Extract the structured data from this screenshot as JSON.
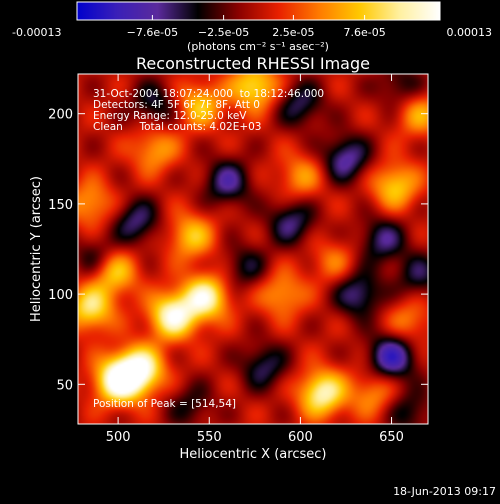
{
  "chart_data": {
    "type": "heatmap",
    "title": "Reconstructed RHESSI Image",
    "xlabel": "Heliocentric X (arcsec)",
    "ylabel": "Heliocentric Y (arcsec)",
    "xlim": [
      478,
      670
    ],
    "ylim": [
      28,
      222
    ],
    "x_ticks": [
      500,
      550,
      600,
      650
    ],
    "y_ticks": [
      50,
      100,
      150,
      200
    ],
    "colorbar": {
      "min": -0.00013,
      "max": 0.00013,
      "tick_values": [
        -0.00013,
        -7.6e-05,
        -2.5e-05,
        2.5e-05,
        7.6e-05,
        0.00013
      ],
      "tick_labels": [
        "-0.00013",
        "−7.6e-05",
        "−2.5e-05",
        "2.5e-05",
        "7.6e-05",
        "0.00013"
      ],
      "unit_label": "(photons cm⁻² s⁻¹ asec⁻²)",
      "colors": [
        "#0000cc",
        "#3a1fb8",
        "#5a2a9c",
        "#000000",
        "#8a0000",
        "#e82000",
        "#ff7a00",
        "#ffc800",
        "#fff0a0",
        "#ffffff"
      ]
    },
    "annotations": [
      "31-Oct-2004 18:07:24.000  to 18:12:46.000",
      "Detectors: 4F 5F 6F 7F 8F, Att 0",
      "Energy Range: 12.0-25.0 keV",
      "Clean     Total counts: 4.02E+03"
    ],
    "peak_label": "Position of Peak = [514,54]",
    "peak": [
      514,
      54
    ],
    "blobs": [
      {
        "x": 500,
        "y": 52,
        "v": 1.0
      },
      {
        "x": 512,
        "y": 58,
        "v": 0.95
      },
      {
        "x": 530,
        "y": 88,
        "v": 0.92
      },
      {
        "x": 548,
        "y": 98,
        "v": 0.85
      },
      {
        "x": 485,
        "y": 92,
        "v": 0.7
      },
      {
        "x": 498,
        "y": 112,
        "v": 0.6
      },
      {
        "x": 540,
        "y": 132,
        "v": 0.55
      },
      {
        "x": 590,
        "y": 100,
        "v": 0.45
      },
      {
        "x": 612,
        "y": 45,
        "v": 0.85
      },
      {
        "x": 575,
        "y": 215,
        "v": 0.7
      },
      {
        "x": 545,
        "y": 205,
        "v": 0.55
      },
      {
        "x": 652,
        "y": 160,
        "v": 0.6
      },
      {
        "x": 665,
        "y": 200,
        "v": 0.45
      },
      {
        "x": 660,
        "y": 85,
        "v": 0.35
      },
      {
        "x": 485,
        "y": 150,
        "v": 0.45
      },
      {
        "x": 600,
        "y": 165,
        "v": 0.4
      },
      {
        "x": 640,
        "y": 45,
        "v": 0.4
      },
      {
        "x": 618,
        "y": 118,
        "v": 0.3
      },
      {
        "x": 520,
        "y": 180,
        "v": 0.45
      },
      {
        "x": 650,
        "y": 65,
        "v": -0.75
      },
      {
        "x": 632,
        "y": 100,
        "v": -0.55
      },
      {
        "x": 625,
        "y": 175,
        "v": -0.6
      },
      {
        "x": 595,
        "y": 140,
        "v": -0.5
      },
      {
        "x": 560,
        "y": 162,
        "v": -0.55
      },
      {
        "x": 510,
        "y": 140,
        "v": -0.5
      },
      {
        "x": 488,
        "y": 120,
        "v": -0.35
      },
      {
        "x": 580,
        "y": 60,
        "v": -0.45
      },
      {
        "x": 645,
        "y": 130,
        "v": -0.5
      },
      {
        "x": 665,
        "y": 110,
        "v": -0.4
      },
      {
        "x": 520,
        "y": 205,
        "v": -0.4
      },
      {
        "x": 600,
        "y": 205,
        "v": -0.45
      },
      {
        "x": 570,
        "y": 115,
        "v": -0.35
      },
      {
        "x": 540,
        "y": 38,
        "v": -0.3
      },
      {
        "x": 660,
        "y": 35,
        "v": -0.35
      },
      {
        "x": 655,
        "y": 215,
        "v": -0.35
      }
    ],
    "blob_width": 9
  },
  "footer": {
    "timestamp": "18-Jun-2013 09:17"
  }
}
